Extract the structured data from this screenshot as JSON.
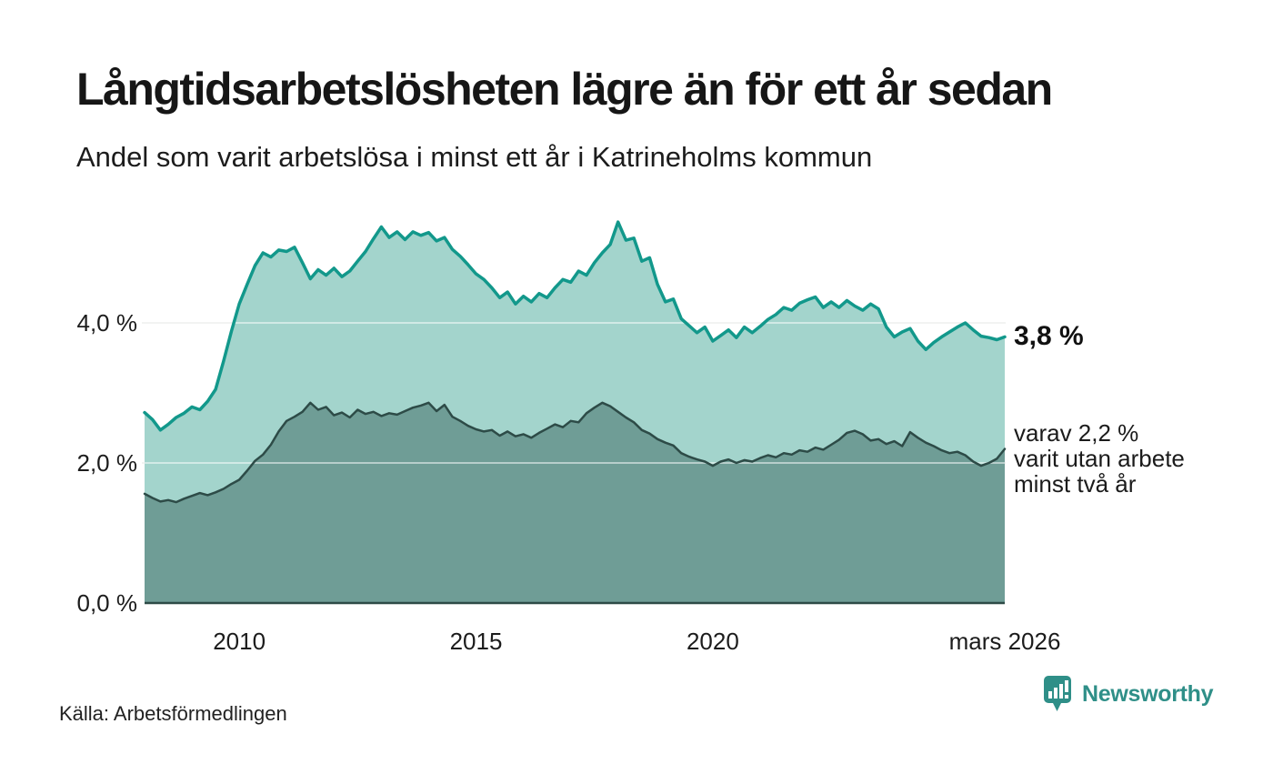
{
  "header": {
    "title": "Långtidsarbetslösheten lägre än för ett år sedan",
    "subtitle": "Andel som varit arbetslösa i minst ett år i Katrineholms kommun"
  },
  "footer": {
    "source": "Källa: Arbetsförmedlingen",
    "brand": "Newsworthy"
  },
  "annotations": {
    "total_end_label": "3,8 %",
    "secondary_lines": [
      "varav 2,2 %",
      "varit utan arbete",
      "minst två år"
    ]
  },
  "axes": {
    "y_ticks": [
      {
        "label": "0,0 %",
        "value": 0
      },
      {
        "label": "2,0 %",
        "value": 2
      },
      {
        "label": "4,0 %",
        "value": 4
      }
    ],
    "x_ticks": [
      {
        "label": "2010",
        "year": 2010
      },
      {
        "label": "2015",
        "year": 2015
      },
      {
        "label": "2020",
        "year": 2020
      },
      {
        "label": "mars 2026",
        "year": 2026.1667
      }
    ]
  },
  "colors": {
    "background": "#ffffff",
    "gridline": "#e4e6e5",
    "gridline_overlay": "rgba(255,255,255,0.5)",
    "total_fill": "#a3d4cc",
    "total_line": "#12988b",
    "secondary_fill": "#6f9d96",
    "secondary_line": "#2d4b47",
    "baseline": "#2d4b47",
    "brand_teal": "#2f8f88"
  },
  "chart_data": {
    "type": "area",
    "title": "Långtidsarbetslösheten lägre än för ett år sedan",
    "subtitle": "Andel som varit arbetslösa i minst ett år i Katrineholms kommun",
    "y_unit": "%",
    "ylim": [
      0,
      5.6
    ],
    "grid": "horizontal",
    "x_start_year": 2008.0,
    "x_step_years": 0.166667,
    "x_end_year": 2026.1667,
    "x_tick_labels": [
      "2010",
      "2015",
      "2020",
      "mars 2026"
    ],
    "series": [
      {
        "name": "Arbetslösa minst ett år",
        "end_value": 3.8,
        "end_label": "3,8 %",
        "values": [
          2.72,
          2.62,
          2.47,
          2.55,
          2.65,
          2.71,
          2.8,
          2.76,
          2.88,
          3.05,
          3.45,
          3.88,
          4.27,
          4.55,
          4.82,
          5.0,
          4.94,
          5.04,
          5.02,
          5.08,
          4.86,
          4.63,
          4.76,
          4.68,
          4.78,
          4.66,
          4.74,
          4.88,
          5.02,
          5.2,
          5.37,
          5.22,
          5.3,
          5.19,
          5.3,
          5.25,
          5.29,
          5.17,
          5.22,
          5.05,
          4.95,
          4.83,
          4.7,
          4.62,
          4.5,
          4.36,
          4.44,
          4.27,
          4.38,
          4.3,
          4.42,
          4.36,
          4.5,
          4.62,
          4.58,
          4.74,
          4.68,
          4.86,
          5.0,
          5.12,
          5.44,
          5.18,
          5.21,
          4.88,
          4.93,
          4.55,
          4.3,
          4.34,
          4.06,
          3.96,
          3.86,
          3.94,
          3.74,
          3.82,
          3.9,
          3.79,
          3.94,
          3.86,
          3.95,
          4.05,
          4.12,
          4.22,
          4.18,
          4.28,
          4.33,
          4.37,
          4.22,
          4.3,
          4.22,
          4.32,
          4.24,
          4.18,
          4.27,
          4.2,
          3.94,
          3.8,
          3.87,
          3.92,
          3.74,
          3.62,
          3.72,
          3.8,
          3.87,
          3.94,
          4.0,
          3.9,
          3.81,
          3.79,
          3.76,
          3.8
        ]
      },
      {
        "name": "varav utan arbete minst två år",
        "end_value": 2.2,
        "end_label": "varav 2,2 % varit utan arbete minst två år",
        "values": [
          1.56,
          1.5,
          1.45,
          1.47,
          1.44,
          1.49,
          1.53,
          1.57,
          1.54,
          1.58,
          1.63,
          1.7,
          1.76,
          1.89,
          2.03,
          2.12,
          2.26,
          2.45,
          2.6,
          2.66,
          2.73,
          2.86,
          2.76,
          2.8,
          2.68,
          2.72,
          2.65,
          2.76,
          2.7,
          2.73,
          2.67,
          2.71,
          2.69,
          2.74,
          2.79,
          2.82,
          2.86,
          2.74,
          2.83,
          2.66,
          2.6,
          2.53,
          2.48,
          2.45,
          2.47,
          2.39,
          2.45,
          2.38,
          2.41,
          2.36,
          2.43,
          2.49,
          2.55,
          2.51,
          2.6,
          2.58,
          2.71,
          2.79,
          2.86,
          2.81,
          2.73,
          2.65,
          2.58,
          2.47,
          2.42,
          2.34,
          2.29,
          2.25,
          2.14,
          2.09,
          2.05,
          2.02,
          1.96,
          2.02,
          2.05,
          2.0,
          2.04,
          2.02,
          2.07,
          2.11,
          2.08,
          2.14,
          2.12,
          2.18,
          2.16,
          2.22,
          2.19,
          2.26,
          2.33,
          2.43,
          2.46,
          2.41,
          2.32,
          2.34,
          2.27,
          2.31,
          2.24,
          2.44,
          2.36,
          2.29,
          2.24,
          2.18,
          2.14,
          2.16,
          2.11,
          2.02,
          1.96,
          2.0,
          2.06,
          2.2
        ]
      }
    ]
  }
}
